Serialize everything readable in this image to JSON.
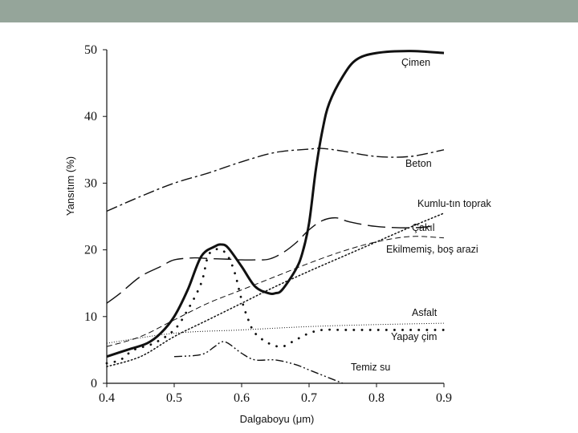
{
  "header": {
    "bar_color": "#95a59a"
  },
  "chart_data": {
    "type": "line",
    "xlabel": "Dalgaboyu (μm)",
    "ylabel": "Yansıtım (%)",
    "xlim": [
      0.4,
      0.9
    ],
    "ylim": [
      0,
      50
    ],
    "xticks": [
      "0.4",
      "0.5",
      "0.6",
      "0.7",
      "0.8",
      "0.9"
    ],
    "yticks": [
      "0",
      "10",
      "20",
      "30",
      "40",
      "50"
    ],
    "grid": false,
    "legend": "inline labels at right",
    "series": [
      {
        "name": "Çimen",
        "style": "solid-thick",
        "x": [
          0.4,
          0.43,
          0.46,
          0.48,
          0.5,
          0.52,
          0.54,
          0.56,
          0.57,
          0.58,
          0.6,
          0.62,
          0.64,
          0.65,
          0.66,
          0.68,
          0.69,
          0.7,
          0.71,
          0.72,
          0.73,
          0.75,
          0.77,
          0.8,
          0.85,
          0.9
        ],
        "y": [
          4,
          5,
          6,
          7.5,
          10,
          14,
          19,
          20.5,
          20.8,
          20.3,
          17.5,
          14.5,
          13.5,
          13.5,
          14,
          17,
          19.5,
          24,
          32,
          38,
          42,
          46,
          48.5,
          49.5,
          49.8,
          49.5
        ]
      },
      {
        "name": "Beton",
        "style": "long-dash-dot",
        "x": [
          0.4,
          0.45,
          0.5,
          0.55,
          0.6,
          0.65,
          0.7,
          0.72,
          0.75,
          0.8,
          0.85,
          0.9
        ],
        "y": [
          25.8,
          28,
          30,
          31.5,
          33.2,
          34.6,
          35.1,
          35.2,
          34.8,
          34.0,
          34.0,
          35.0
        ]
      },
      {
        "name": "Kumlu-tın toprak",
        "style": "dotted",
        "x": [
          0.4,
          0.45,
          0.5,
          0.55,
          0.6,
          0.65,
          0.7,
          0.75,
          0.8,
          0.85,
          0.9
        ],
        "y": [
          2.5,
          4,
          7,
          9.5,
          12,
          14.5,
          16.8,
          19,
          21.2,
          23.4,
          25.5
        ]
      },
      {
        "name": "Çakıl",
        "style": "long-dash",
        "x": [
          0.4,
          0.42,
          0.45,
          0.48,
          0.5,
          0.53,
          0.55,
          0.58,
          0.6,
          0.62,
          0.64,
          0.66,
          0.68,
          0.7,
          0.72,
          0.74,
          0.76,
          0.8,
          0.85,
          0.88
        ],
        "y": [
          12,
          13.5,
          16,
          17.5,
          18.5,
          18.8,
          18.7,
          18.6,
          18.5,
          18.5,
          18.6,
          19.5,
          21,
          23,
          24.4,
          24.8,
          24.2,
          23.5,
          23.3,
          23.5
        ]
      },
      {
        "name": "Ekilmemiş, boş arazi",
        "style": "dashed-thin",
        "x": [
          0.4,
          0.45,
          0.5,
          0.55,
          0.6,
          0.65,
          0.7,
          0.75,
          0.8,
          0.85,
          0.9
        ],
        "y": [
          5.5,
          7,
          9.5,
          12,
          14,
          16,
          18,
          19.8,
          21.2,
          22,
          21.8
        ]
      },
      {
        "name": "Asfalt",
        "style": "fine-dotted",
        "x": [
          0.4,
          0.5,
          0.6,
          0.7,
          0.8,
          0.9
        ],
        "y": [
          6,
          7.5,
          8,
          8.5,
          8.8,
          9
        ]
      },
      {
        "name": "Yapay çim",
        "style": "sparse-dots",
        "x": [
          0.4,
          0.42,
          0.44,
          0.47,
          0.5,
          0.52,
          0.54,
          0.55,
          0.56,
          0.57,
          0.58,
          0.59,
          0.6,
          0.61,
          0.62,
          0.64,
          0.66,
          0.68,
          0.7,
          0.72,
          0.75,
          0.8,
          0.85,
          0.9
        ],
        "y": [
          3,
          3.5,
          5,
          6,
          8,
          11,
          15,
          19,
          20,
          20,
          19,
          16.5,
          12.5,
          9.5,
          7.5,
          6,
          5.5,
          6.5,
          7.5,
          8,
          8,
          8,
          8,
          8
        ]
      },
      {
        "name": "Temiz su",
        "style": "dash-dot-dot",
        "x": [
          0.5,
          0.54,
          0.56,
          0.57,
          0.58,
          0.6,
          0.62,
          0.65,
          0.68,
          0.7,
          0.72,
          0.75
        ],
        "y": [
          4,
          4.3,
          5.5,
          6.2,
          6,
          4.5,
          3.5,
          3.5,
          2.8,
          2,
          1.2,
          0
        ]
      }
    ]
  }
}
